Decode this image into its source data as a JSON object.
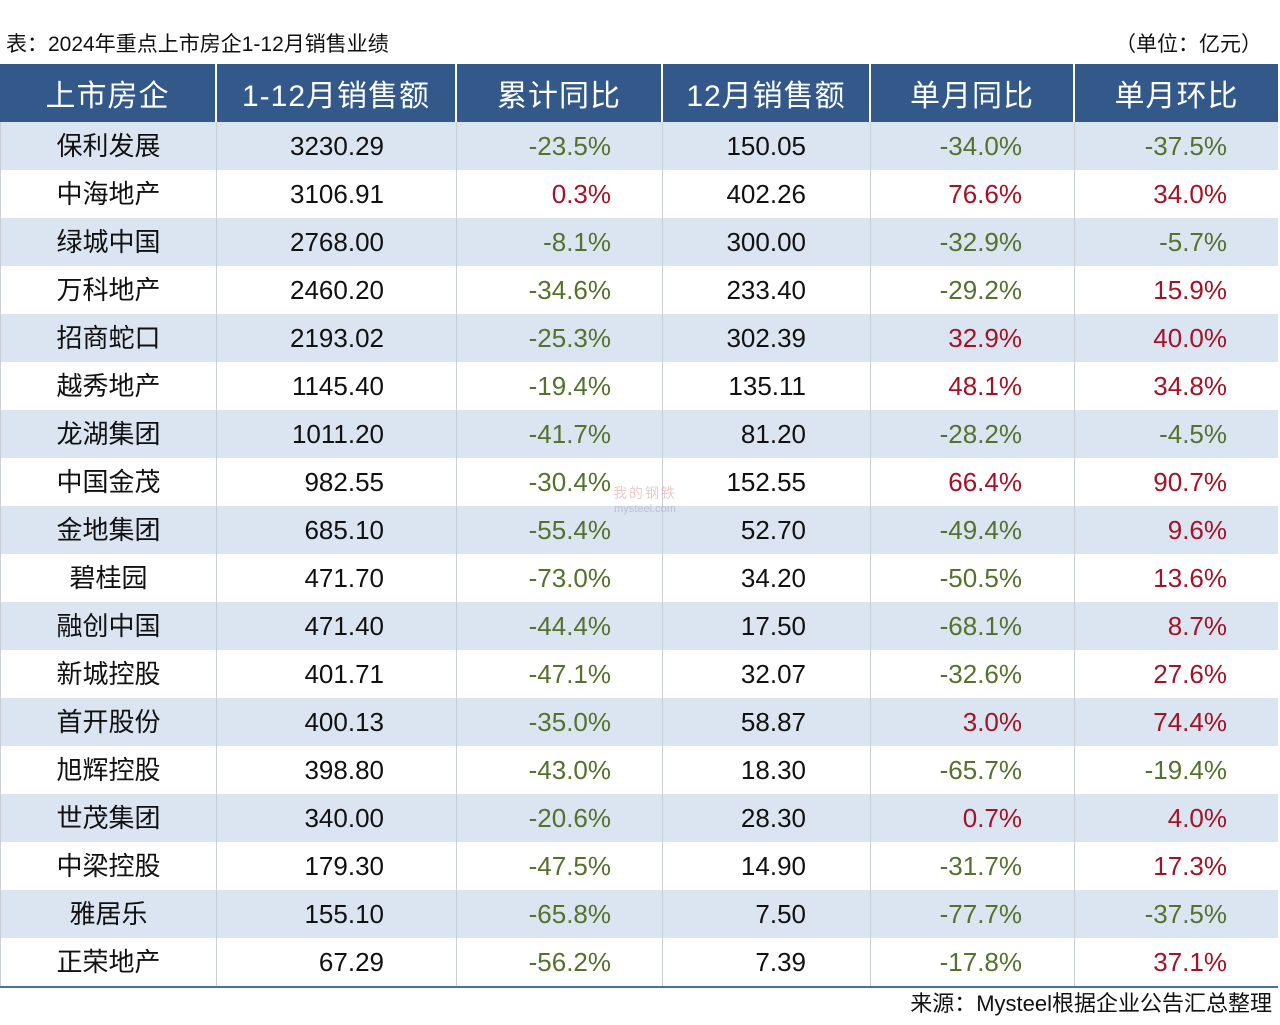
{
  "chart_data": {
    "type": "table",
    "title": "表：2024年重点上市房企1-12月销售业绩",
    "unit": "（单位：亿元）",
    "columns": [
      "上市房企",
      "1-12月销售额",
      "累计同比",
      "12月销售额",
      "单月同比",
      "单月环比"
    ],
    "rows": [
      [
        "保利发展",
        "3230.29",
        "-23.5%",
        "150.05",
        "-34.0%",
        "-37.5%"
      ],
      [
        "中海地产",
        "3106.91",
        "0.3%",
        "402.26",
        "76.6%",
        "34.0%"
      ],
      [
        "绿城中国",
        "2768.00",
        "-8.1%",
        "300.00",
        "-32.9%",
        "-5.7%"
      ],
      [
        "万科地产",
        "2460.20",
        "-34.6%",
        "233.40",
        "-29.2%",
        "15.9%"
      ],
      [
        "招商蛇口",
        "2193.02",
        "-25.3%",
        "302.39",
        "32.9%",
        "40.0%"
      ],
      [
        "越秀地产",
        "1145.40",
        "-19.4%",
        "135.11",
        "48.1%",
        "34.8%"
      ],
      [
        "龙湖集团",
        "1011.20",
        "-41.7%",
        "81.20",
        "-28.2%",
        "-4.5%"
      ],
      [
        "中国金茂",
        "982.55",
        "-30.4%",
        "152.55",
        "66.4%",
        "90.7%"
      ],
      [
        "金地集团",
        "685.10",
        "-55.4%",
        "52.70",
        "-49.4%",
        "9.6%"
      ],
      [
        "碧桂园",
        "471.70",
        "-73.0%",
        "34.20",
        "-50.5%",
        "13.6%"
      ],
      [
        "融创中国",
        "471.40",
        "-44.4%",
        "17.50",
        "-68.1%",
        "8.7%"
      ],
      [
        "新城控股",
        "401.71",
        "-47.1%",
        "32.07",
        "-32.6%",
        "27.6%"
      ],
      [
        "首开股份",
        "400.13",
        "-35.0%",
        "58.87",
        "3.0%",
        "74.4%"
      ],
      [
        "旭辉控股",
        "398.80",
        "-43.0%",
        "18.30",
        "-65.7%",
        "-19.4%"
      ],
      [
        "世茂集团",
        "340.00",
        "-20.6%",
        "28.30",
        "0.7%",
        "4.0%"
      ],
      [
        "中梁控股",
        "179.30",
        "-47.5%",
        "14.90",
        "-31.7%",
        "17.3%"
      ],
      [
        "雅居乐",
        "155.10",
        "-65.8%",
        "7.50",
        "-77.7%",
        "-37.5%"
      ],
      [
        "正荣地产",
        "67.29",
        "-56.2%",
        "7.39",
        "-17.8%",
        "37.1%"
      ]
    ],
    "source": "来源：Mysteel根据企业公告汇总整理"
  },
  "watermark": {
    "logo_text": "我的钢铁",
    "site": "mysteel.com"
  },
  "colors": {
    "header_bg": "#33598b",
    "header_text": "#ffffff",
    "stripe": "#dbe5f1",
    "negative": "#55712c",
    "positive": "#a31226",
    "rule": "#4a6fa5"
  }
}
